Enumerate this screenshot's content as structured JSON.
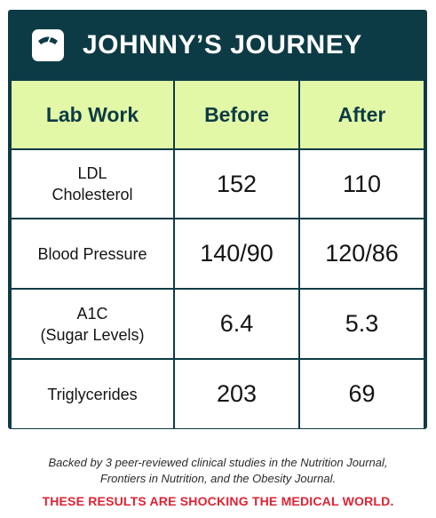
{
  "header": {
    "icon": "scale-icon",
    "title": "JOHNNY’S JOURNEY"
  },
  "table": {
    "columns": [
      "Lab Work",
      "Before",
      "After"
    ],
    "rows": [
      {
        "label_lines": [
          "LDL",
          "Cholesterol"
        ],
        "before": "152",
        "after": "110"
      },
      {
        "label_lines": [
          "Blood Pressure"
        ],
        "before": "140/90",
        "after": "120/86"
      },
      {
        "label_lines": [
          "A1C",
          "(Sugar Levels)"
        ],
        "before": "6.4",
        "after": "5.3"
      },
      {
        "label_lines": [
          "Triglycerides"
        ],
        "before": "203",
        "after": "69"
      }
    ]
  },
  "footer": {
    "note_lines": [
      "Backed by 3 peer-reviewed clinical studies in the Nutrition Journal,",
      "Frontiers in Nutrition, and the Obesity Journal."
    ],
    "alert": "THESE RESULTS ARE SHOCKING THE MEDICAL WORLD."
  },
  "colors": {
    "frame": "#0d3b45",
    "header_row": "#e3f8a7",
    "alert": "#e02232"
  }
}
